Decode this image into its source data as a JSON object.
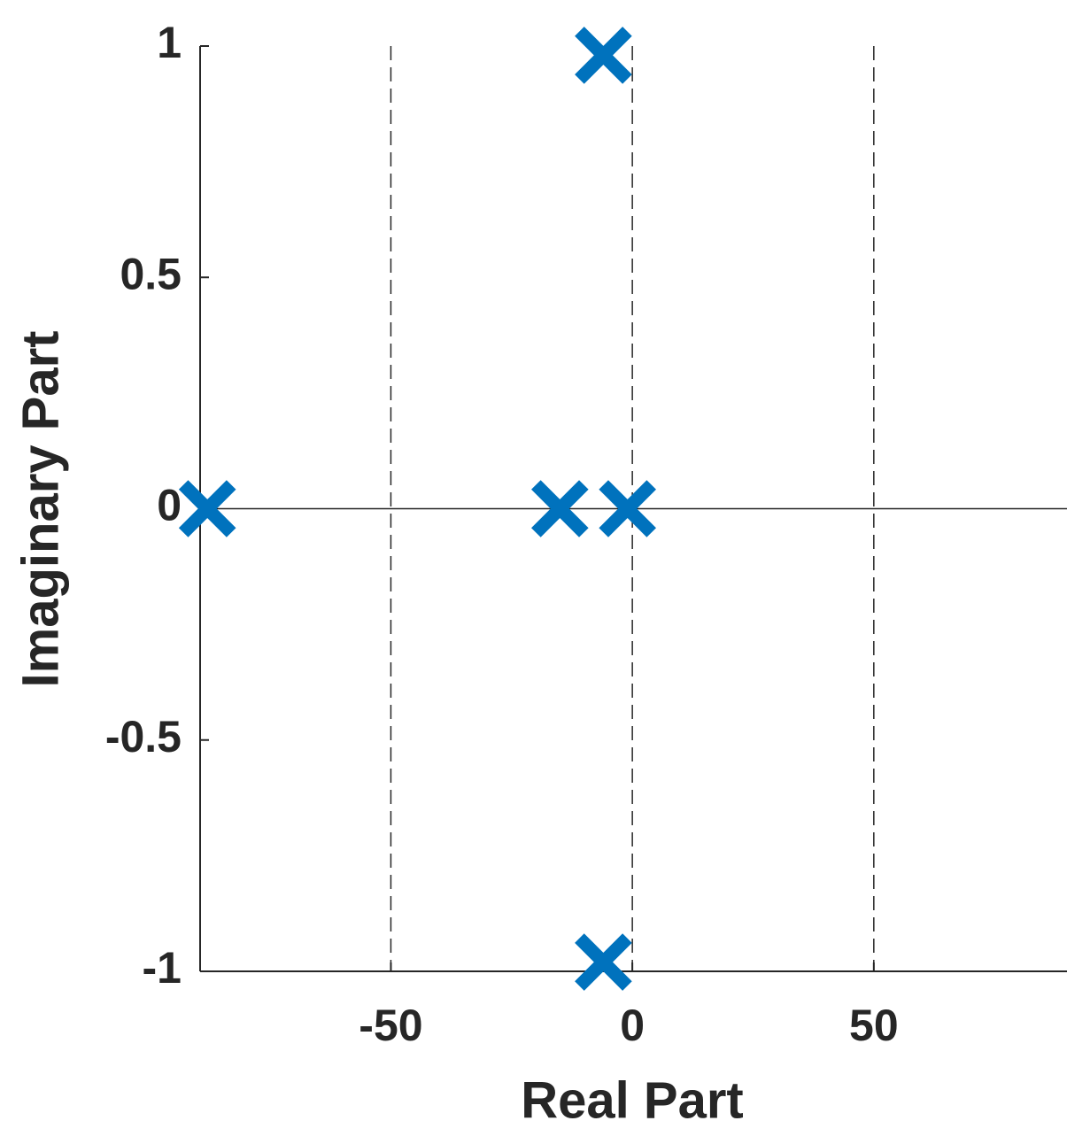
{
  "chart_data": {
    "type": "scatter",
    "x_label": "Real Part",
    "y_label": "Imaginary Part",
    "x": [
      -88,
      -15,
      -1,
      -6,
      -6
    ],
    "values": [
      0,
      0,
      0,
      0.98,
      -0.98
    ],
    "color": "#0072bd",
    "marker": "x",
    "xlim": [
      -89.5,
      90
    ],
    "ylim": [
      -1,
      1
    ],
    "xticks": [
      -50,
      0,
      50
    ],
    "yticks": [
      -1,
      -0.5,
      0,
      0.5,
      1
    ],
    "xgrid": true,
    "hline": 0
  }
}
